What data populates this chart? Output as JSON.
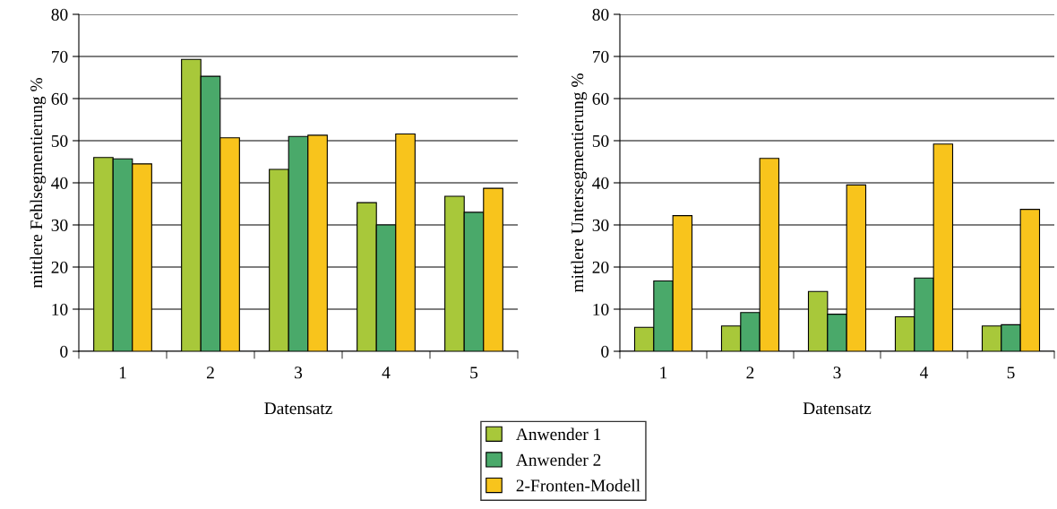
{
  "chart_data": [
    {
      "type": "bar",
      "xlabel": "Datensatz",
      "ylabel": "mittlere Fehlsegmentierung %",
      "categories": [
        "1",
        "2",
        "3",
        "4",
        "5"
      ],
      "ylim": [
        0,
        80
      ],
      "yticks": [
        0,
        10,
        20,
        30,
        40,
        50,
        60,
        70,
        80
      ],
      "grid": "y",
      "legend": "bottom",
      "series": [
        {
          "name": "Anwender 1",
          "color": "#a8c83a",
          "values": [
            46.0,
            69.3,
            43.2,
            35.3,
            36.8
          ]
        },
        {
          "name": "Anwender 2",
          "color": "#4aa96a",
          "values": [
            45.7,
            65.3,
            51.0,
            30.0,
            33.0
          ]
        },
        {
          "name": "2-Fronten-Modell",
          "color": "#f8c41c",
          "values": [
            44.5,
            50.7,
            51.3,
            51.6,
            38.7
          ]
        }
      ]
    },
    {
      "type": "bar",
      "xlabel": "Datensatz",
      "ylabel": "mittlere Untersegmentierung %",
      "categories": [
        "1",
        "2",
        "3",
        "4",
        "5"
      ],
      "ylim": [
        0,
        80
      ],
      "yticks": [
        0,
        10,
        20,
        30,
        40,
        50,
        60,
        70,
        80
      ],
      "grid": "y",
      "series": [
        {
          "color": "#a8c83a",
          "values": [
            5.7,
            6.0,
            14.2,
            8.2,
            6.0
          ]
        },
        {
          "color": "#4aa96a",
          "values": [
            16.7,
            9.2,
            8.8,
            17.4,
            6.3
          ]
        },
        {
          "color": "#f8c41c",
          "values": [
            32.2,
            45.8,
            39.5,
            49.2,
            33.7
          ]
        }
      ]
    }
  ]
}
